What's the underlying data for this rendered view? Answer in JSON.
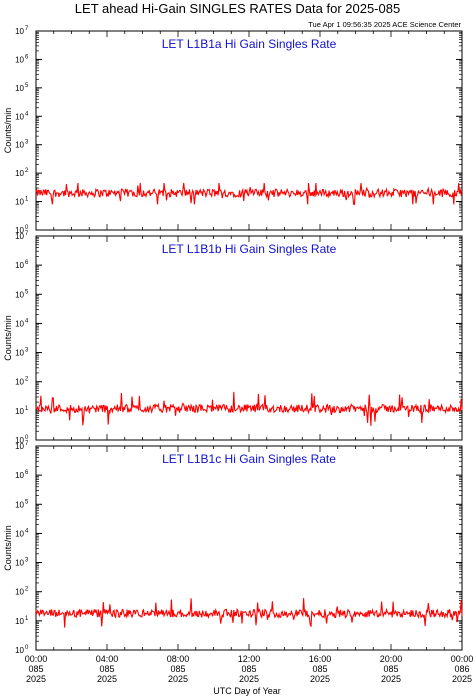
{
  "header": {
    "title": "LET ahead Hi-Gain SINGLES RATES Data for 2025-085",
    "timestamp": "Tue Apr  1 09:56:35 2025 ACE Science Center"
  },
  "colors": {
    "series": "#ff0000",
    "panel_title": "#1010d0",
    "axes": "#000000"
  },
  "chart_data": [
    {
      "type": "line",
      "title": "LET L1B1a Hi Gain Singles Rate",
      "ylabel": "Counts/min",
      "xlabel": "",
      "yscale": "log",
      "ylim": [
        1,
        10000000
      ],
      "xlim": [
        "2025-085 00:00",
        "2025-086 00:00"
      ],
      "series": [
        {
          "typical": 20,
          "range": [
            8,
            45
          ]
        }
      ]
    },
    {
      "type": "line",
      "title": "LET L1B1b Hi Gain Singles Rate",
      "ylabel": "Counts/min",
      "xlabel": "",
      "yscale": "log",
      "ylim": [
        1,
        10000000
      ],
      "xlim": [
        "2025-085 00:00",
        "2025-086 00:00"
      ],
      "series": [
        {
          "typical": 12,
          "range": [
            3,
            45
          ]
        }
      ]
    },
    {
      "type": "line",
      "title": "LET L1B1c Hi Gain Singles Rate",
      "ylabel": "Counts/min",
      "xlabel": "UTC Day of Year",
      "yscale": "log",
      "ylim": [
        1,
        10000000
      ],
      "xlim": [
        "2025-085 00:00",
        "2025-086 00:00"
      ],
      "series": [
        {
          "typical": 18,
          "range": [
            4,
            60
          ]
        }
      ]
    }
  ],
  "y_ticks": [
    {
      "base": "10",
      "exp": "0"
    },
    {
      "base": "10",
      "exp": "1"
    },
    {
      "base": "10",
      "exp": "2"
    },
    {
      "base": "10",
      "exp": "3"
    },
    {
      "base": "10",
      "exp": "4"
    },
    {
      "base": "10",
      "exp": "5"
    },
    {
      "base": "10",
      "exp": "6"
    },
    {
      "base": "10",
      "exp": "7"
    }
  ],
  "x_ticks": [
    {
      "time": "00:00",
      "doy": "085",
      "year": "2025"
    },
    {
      "time": "04:00",
      "doy": "085",
      "year": "2025"
    },
    {
      "time": "08:00",
      "doy": "085",
      "year": "2025"
    },
    {
      "time": "12:00",
      "doy": "085",
      "year": "2025"
    },
    {
      "time": "16:00",
      "doy": "085",
      "year": "2025"
    },
    {
      "time": "20:00",
      "doy": "085",
      "year": "2025"
    },
    {
      "time": "00:00",
      "doy": "086",
      "year": "2025"
    }
  ]
}
